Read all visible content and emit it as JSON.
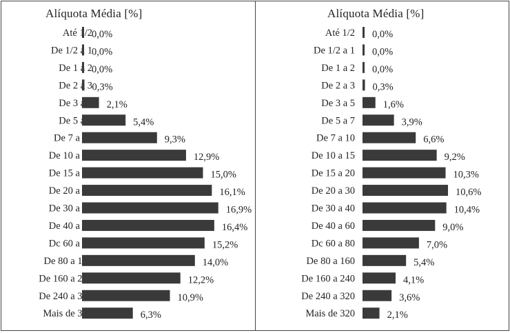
{
  "chart_data": [
    {
      "type": "bar",
      "orientation": "horizontal",
      "title": "Alíquota Média [%]",
      "categories": [
        "Até 1/2",
        "De 1/2 a 1",
        "De 1 a 2",
        "De 2 a 3",
        "De 3 a 5",
        "De 5 a 7",
        "De 7 a 10",
        "De 10 a 15",
        "De 15 a 20",
        "De 20 a 30",
        "De 30 a 40",
        "De 40 a 60",
        "Dc 60 a 80",
        "De 80 a 160",
        "De 160 a 240",
        "De 240 a 320",
        "Mais de 320"
      ],
      "values": [
        0.0,
        0.0,
        0.0,
        0.3,
        2.1,
        5.4,
        9.3,
        12.9,
        15.0,
        16.1,
        16.9,
        16.4,
        15.2,
        14.0,
        12.2,
        10.9,
        6.3
      ],
      "value_labels": [
        "0,0%",
        "0,0%",
        "0,0%",
        "0,3%",
        "2,1%",
        "5,4%",
        "9,3%",
        "12,9%",
        "15,0%",
        "16,1%",
        "16,9%",
        "16,4%",
        "15,2%",
        "14,0%",
        "12,2%",
        "10,9%",
        "6,3%"
      ],
      "bar_color": "#3a3a3a"
    },
    {
      "type": "bar",
      "orientation": "horizontal",
      "title": "Alíquota Média [%]",
      "categories": [
        "Até 1/2",
        "De 1/2 a 1",
        "De 1 a 2",
        "De 2 a 3",
        "De 3 a 5",
        "De 5 a 7",
        "De 7 a 10",
        "De 10 a 15",
        "De 15 a 20",
        "De 20 a 30",
        "De 30 a 40",
        "De 40 a 60",
        "Dc 60 a 80",
        "De 80 a 160",
        "De 160 a 240",
        "De 240 a 320",
        "Mais de 320"
      ],
      "values": [
        0.0,
        0.0,
        0.0,
        0.3,
        1.6,
        3.9,
        6.6,
        9.2,
        10.3,
        10.6,
        10.4,
        9.0,
        7.0,
        5.4,
        4.1,
        3.6,
        2.1
      ],
      "value_labels": [
        "0,0%",
        "0,0%",
        "0,0%",
        "0,3%",
        "1,6%",
        "3,9%",
        "6,6%",
        "9,2%",
        "10,3%",
        "10,6%",
        "10,4%",
        "9,0%",
        "7,0%",
        "5,4%",
        "4,1%",
        "3,6%",
        "2,1%"
      ],
      "bar_color": "#3a3a3a"
    }
  ]
}
